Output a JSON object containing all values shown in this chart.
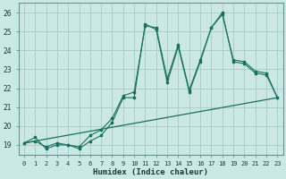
{
  "xlabel": "Humidex (Indice chaleur)",
  "bg_color": "#cce8e4",
  "grid_color": "#aacfc9",
  "line_color": "#1a7060",
  "xlim": [
    -0.5,
    23.5
  ],
  "ylim": [
    18.5,
    26.5
  ],
  "xticks": [
    0,
    1,
    2,
    3,
    4,
    5,
    6,
    7,
    8,
    9,
    10,
    11,
    12,
    13,
    14,
    15,
    16,
    17,
    18,
    19,
    20,
    21,
    22,
    23
  ],
  "yticks": [
    19,
    20,
    21,
    22,
    23,
    24,
    25,
    26
  ],
  "line1_x": [
    0,
    1,
    2,
    3,
    4,
    5,
    6,
    7,
    8,
    9,
    10,
    11,
    12,
    13,
    14,
    15,
    16,
    17,
    18,
    19,
    20,
    21,
    22,
    23
  ],
  "line1_y": [
    19.1,
    19.4,
    18.8,
    19.0,
    19.0,
    18.8,
    19.2,
    19.5,
    20.2,
    21.5,
    21.5,
    25.4,
    25.1,
    22.3,
    24.2,
    21.8,
    23.4,
    25.2,
    26.0,
    23.4,
    23.3,
    22.8,
    22.7,
    21.5
  ],
  "line2_x": [
    0,
    1,
    2,
    3,
    4,
    5,
    6,
    7,
    8,
    9,
    10,
    11,
    12,
    13,
    14,
    15,
    16,
    17,
    18,
    19,
    20,
    21,
    22,
    23
  ],
  "line2_y": [
    19.1,
    19.2,
    18.9,
    19.1,
    19.0,
    18.9,
    19.5,
    19.8,
    20.4,
    21.6,
    21.8,
    25.3,
    25.2,
    22.5,
    24.3,
    21.9,
    23.5,
    25.2,
    25.9,
    23.5,
    23.4,
    22.9,
    22.8,
    21.5
  ],
  "line3_x": [
    0,
    23
  ],
  "line3_y": [
    19.1,
    21.5
  ]
}
